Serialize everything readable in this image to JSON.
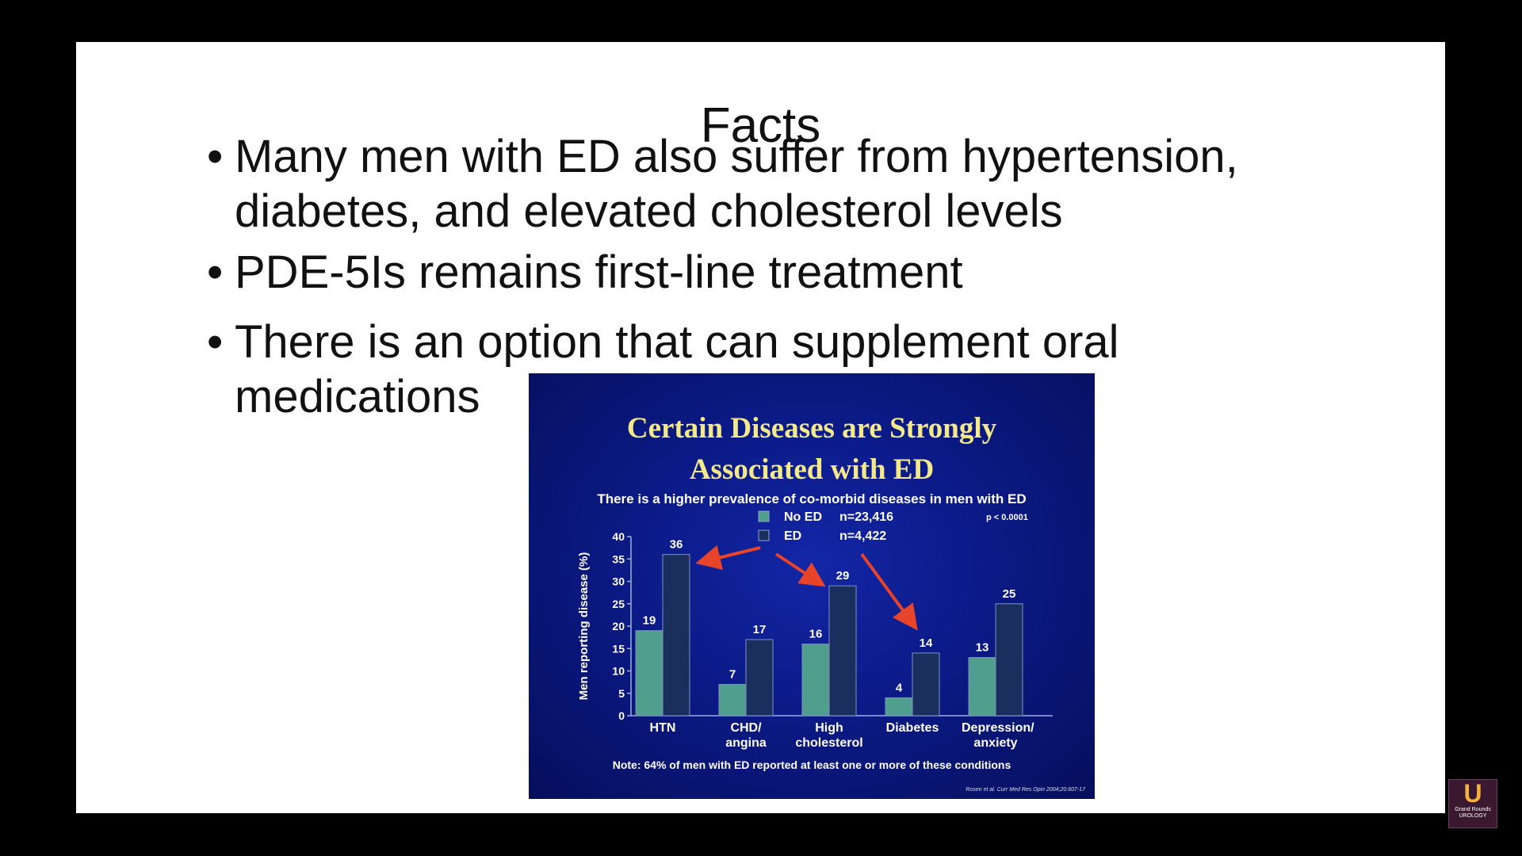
{
  "slide": {
    "title": "Facts",
    "bullets": [
      "Many men with ED also suffer from hypertension, diabetes, and elevated cholesterol levels",
      "PDE-5Is remains first-line treatment",
      "There is an option that can supplement oral medications"
    ]
  },
  "chart_data": {
    "type": "bar",
    "title": "Certain Diseases are Strongly Associated with ED",
    "subtitle": "There is a higher prevalence of co-morbid diseases in men with ED",
    "y_label": "Men reporting disease (%)",
    "annotation": "p < 0.0001",
    "note": "Note: 64% of men with ED reported at least one or more of these conditions",
    "source": "Rosen et al. Curr Med Res Opin 2004;20:607-17",
    "categories": [
      "HTN",
      "CHD/ angina",
      "High cholesterol",
      "Diabetes",
      "Depression/ anxiety"
    ],
    "series": [
      {
        "name": "No ED",
        "sample_size": "n=23,416",
        "color": "#4f9e8e",
        "values": [
          19,
          7,
          16,
          4,
          13
        ]
      },
      {
        "name": "ED",
        "sample_size": "n=4,422",
        "color": "#1b2f5e",
        "values": [
          36,
          17,
          29,
          14,
          25
        ]
      }
    ],
    "ylim": [
      0,
      40
    ],
    "yticks": [
      0,
      5,
      10,
      15,
      20,
      25,
      30,
      35,
      40
    ],
    "grid": false
  },
  "logo": {
    "mark": "U",
    "line1": "Grand Rounds",
    "line2": "UROLOGY"
  }
}
